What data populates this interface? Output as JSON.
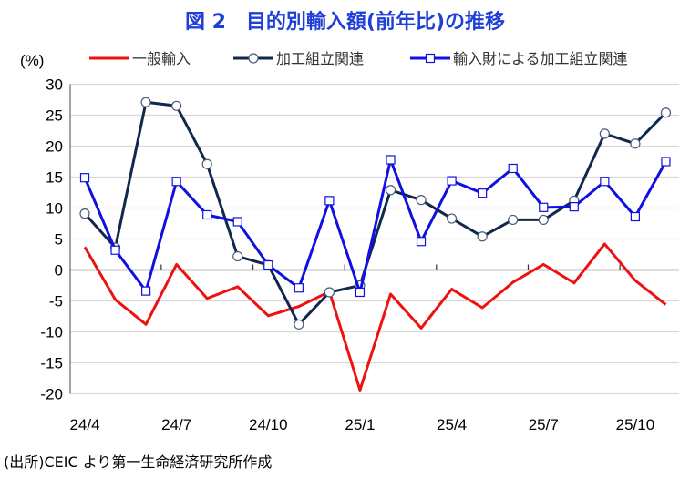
{
  "title": "図 2　目的別輸入額(前年比)の推移",
  "source": "(出所)CEIC より第一生命経済研究所作成",
  "chart_data": {
    "type": "line",
    "title": "図 2　目的別輸入額(前年比)の推移",
    "ylabel": "(%)",
    "xlabel": "",
    "ylim": [
      -20,
      30
    ],
    "yticks": [
      30,
      25,
      20,
      15,
      10,
      5,
      0,
      -5,
      -10,
      -15,
      -20
    ],
    "grid": true,
    "legend_position": "top",
    "x": [
      "24/4",
      "24/5",
      "24/6",
      "24/7",
      "24/8",
      "24/9",
      "24/10",
      "24/11",
      "24/12",
      "25/1",
      "25/2",
      "25/3",
      "25/4",
      "25/5",
      "25/6",
      "25/7",
      "25/8",
      "25/9",
      "25/10",
      "25/11"
    ],
    "xtick_labels": [
      "24/4",
      "24/7",
      "24/10",
      "25/1",
      "25/4",
      "25/7",
      "25/10"
    ],
    "series": [
      {
        "name": "一般輸入",
        "color": "#ee1111",
        "marker": "none",
        "values": [
          3.7,
          -4.8,
          -8.8,
          0.9,
          -4.6,
          -2.7,
          -7.4,
          -5.9,
          -3.5,
          -19.4,
          -3.9,
          -9.4,
          -3.1,
          -6.1,
          -2.0,
          0.9,
          -2.1,
          4.2,
          -1.7,
          -5.6
        ]
      },
      {
        "name": "加工組立関連",
        "color": "#10284f",
        "marker": "circle",
        "values": [
          9.1,
          3.6,
          27.1,
          26.5,
          17.1,
          2.2,
          0.8,
          -8.8,
          -3.6,
          -2.5,
          12.9,
          11.3,
          8.3,
          5.4,
          8.1,
          8.1,
          11.2,
          22.0,
          20.4,
          25.4
        ]
      },
      {
        "name": "輸入財による加工組立関連",
        "color": "#1010e0",
        "marker": "square",
        "values": [
          14.9,
          3.2,
          -3.4,
          14.3,
          8.9,
          7.8,
          0.8,
          -2.9,
          11.2,
          -3.6,
          17.8,
          4.6,
          14.4,
          12.4,
          16.4,
          10.1,
          10.2,
          14.3,
          8.6,
          17.5
        ]
      }
    ]
  }
}
